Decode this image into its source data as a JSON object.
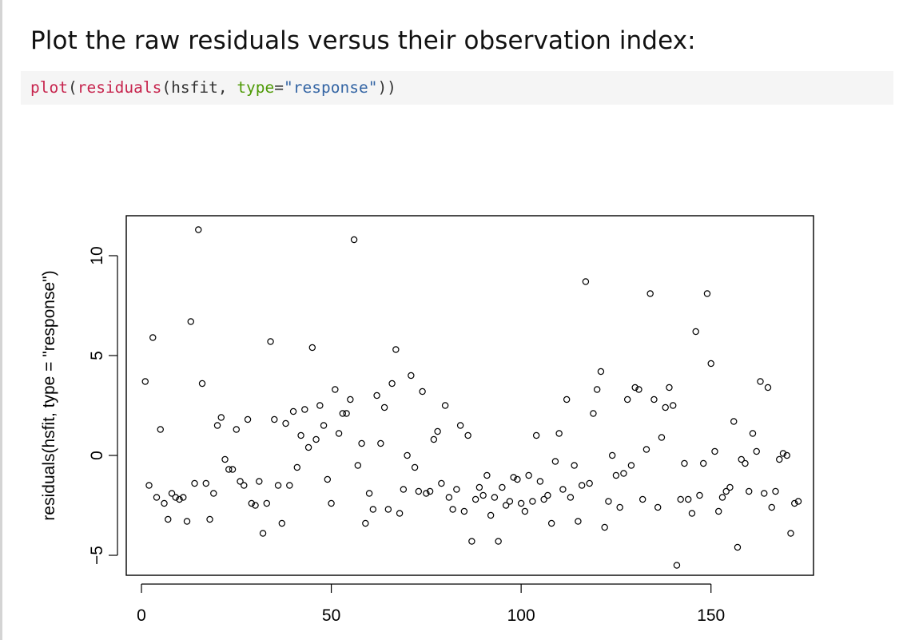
{
  "heading": "Plot the raw residuals versus their observation index:",
  "code": {
    "fn_plot": "plot",
    "paren_open": "(",
    "fn_residuals": "residuals",
    "args_a": "(hsfit, ",
    "arg_type": "type",
    "eq": "=",
    "str_response": "\"response\"",
    "close": "))"
  },
  "chart_data": {
    "type": "scatter",
    "title": "",
    "xlabel": "",
    "ylabel": "residuals(hsfit, type = \"response\")",
    "xlim": [
      -4,
      177
    ],
    "ylim": [
      -6,
      12
    ],
    "x_ticks": [
      0,
      50,
      100,
      150
    ],
    "y_ticks": [
      -5,
      0,
      5,
      10
    ],
    "grid": false,
    "marker": "open-circle",
    "colors": {
      "points": "#000000",
      "axes": "#000000"
    },
    "series": [
      {
        "x": [
          1,
          2,
          3,
          4,
          5,
          6,
          7,
          8,
          9,
          10,
          11,
          12,
          13,
          14,
          15,
          16,
          17,
          18,
          19,
          20,
          21,
          22,
          23,
          24,
          25,
          26,
          27,
          28,
          29,
          30,
          31,
          32,
          33,
          34,
          35,
          36,
          37,
          38,
          39,
          40,
          41,
          42,
          43,
          44,
          45,
          46,
          47,
          48,
          49,
          50,
          51,
          52,
          53,
          54,
          55,
          56,
          57,
          58,
          59,
          60,
          61,
          62,
          63,
          64,
          65,
          66,
          67,
          68,
          69,
          70,
          71,
          72,
          73,
          74,
          75,
          76,
          77,
          78,
          79,
          80,
          81,
          82,
          83,
          84,
          85,
          86,
          87,
          88,
          89,
          90,
          91,
          92,
          93,
          94,
          95,
          96,
          97,
          98,
          99,
          100,
          101,
          102,
          103,
          104,
          105,
          106,
          107,
          108,
          109,
          110,
          111,
          112,
          113,
          114,
          115,
          116,
          117,
          118,
          119,
          120,
          121,
          122,
          123,
          124,
          125,
          126,
          127,
          128,
          129,
          130,
          131,
          132,
          133,
          134,
          135,
          136,
          137,
          138,
          139,
          140,
          141,
          142,
          143,
          144,
          145,
          146,
          147,
          148,
          149,
          150,
          151,
          152,
          153,
          154,
          155,
          156,
          157,
          158,
          159,
          160,
          161,
          162,
          163,
          164,
          165,
          166,
          167,
          168,
          169,
          170,
          171,
          172,
          173
        ],
        "y": [
          3.7,
          -1.5,
          5.9,
          -2.1,
          1.3,
          -2.4,
          -3.2,
          -1.9,
          -2.1,
          -2.2,
          -2.1,
          -3.3,
          6.7,
          -1.4,
          11.3,
          3.6,
          -1.4,
          -3.2,
          -1.9,
          1.5,
          1.9,
          -0.2,
          -0.7,
          -0.7,
          1.3,
          -1.3,
          -1.5,
          1.8,
          -2.4,
          -2.5,
          -1.3,
          -3.9,
          -2.4,
          5.7,
          1.8,
          -1.5,
          -3.4,
          1.6,
          -1.5,
          2.2,
          -0.6,
          1.0,
          2.3,
          0.4,
          5.4,
          0.8,
          2.5,
          1.5,
          -1.2,
          -2.4,
          3.3,
          1.1,
          2.1,
          2.1,
          2.8,
          10.8,
          -0.5,
          0.6,
          -3.4,
          -1.9,
          -2.7,
          3.0,
          0.6,
          2.4,
          -2.7,
          3.6,
          5.3,
          -2.9,
          -1.7,
          0.0,
          4.0,
          -0.6,
          -1.8,
          3.2,
          -1.9,
          -1.8,
          0.8,
          1.2,
          -1.4,
          2.5,
          -2.1,
          -2.7,
          -1.7,
          1.5,
          -2.8,
          1.0,
          -4.3,
          -2.2,
          -1.6,
          -2.0,
          -1.0,
          -3.0,
          -2.1,
          -4.3,
          -1.6,
          -2.5,
          -2.3,
          -1.1,
          -1.2,
          -2.4,
          -2.8,
          -1.0,
          -2.3,
          1.0,
          -1.3,
          -2.2,
          -2.0,
          -3.4,
          -0.3,
          1.1,
          -1.7,
          2.8,
          -2.1,
          -0.5,
          -3.3,
          -1.5,
          8.7,
          -1.4,
          2.1,
          3.3,
          4.2,
          -3.6,
          -2.3,
          0.0,
          -1.0,
          -2.6,
          -0.9,
          2.8,
          -0.5,
          3.4,
          3.3,
          -2.2,
          0.3,
          8.1,
          2.8,
          -2.6,
          0.9,
          2.4,
          3.4,
          2.5,
          -5.5,
          -2.2,
          -0.4,
          -2.2,
          -2.9,
          6.2,
          -2.0,
          -0.4,
          8.1,
          4.6,
          0.2,
          -2.8,
          -2.1,
          -1.8,
          -1.6,
          1.7,
          -4.6,
          -0.2,
          -0.4,
          -1.8,
          1.1,
          0.2,
          3.7,
          -1.9,
          3.4,
          -2.6,
          -1.8,
          -0.2,
          0.1,
          0.0,
          -3.9,
          -2.4,
          -2.3
        ]
      }
    ]
  }
}
